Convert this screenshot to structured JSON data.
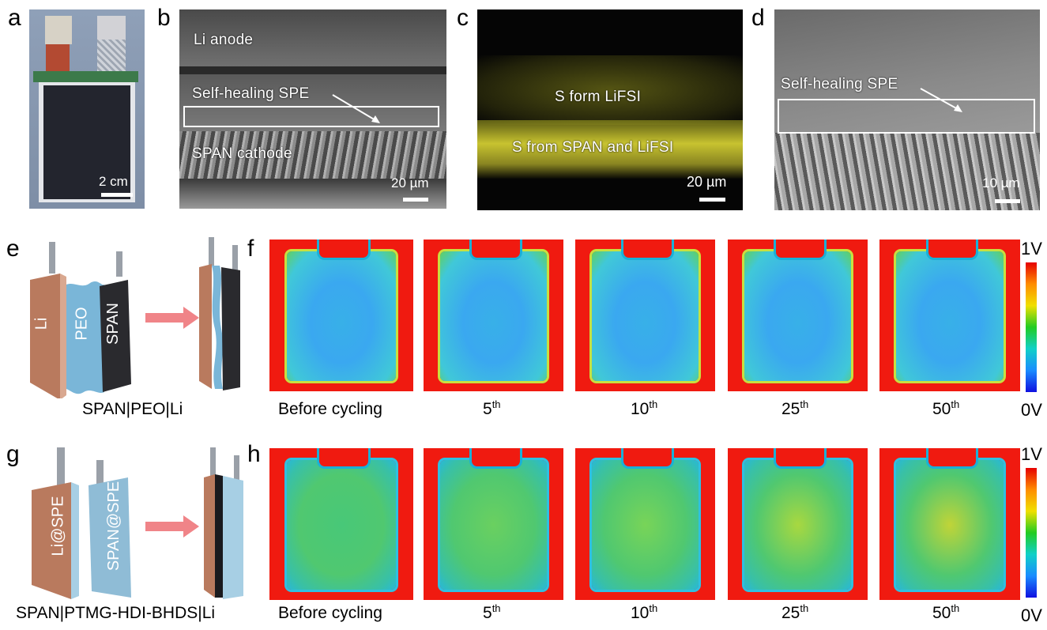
{
  "panels": {
    "a": {
      "label": "a",
      "scale": "2 cm"
    },
    "b": {
      "label": "b",
      "top_text": "Li anode",
      "middle_text": "Self-healing SPE",
      "bottom_text": "SPAN cathode",
      "scale": "20 µm"
    },
    "c": {
      "label": "c",
      "upper_text": "S form LiFSI",
      "lower_text": "S from SPAN and LiFSI",
      "scale": "20 µm"
    },
    "d": {
      "label": "d",
      "text": "Self-healing SPE",
      "scale": "10 µm"
    },
    "e": {
      "label": "e",
      "layers": [
        "Li",
        "PEO",
        "SPAN"
      ],
      "caption": "SPAN|PEO|Li"
    },
    "f": {
      "label": "f"
    },
    "g": {
      "label": "g",
      "layers": [
        "Li@SPE",
        "SPAN@SPE"
      ],
      "caption": "SPAN|PTMG-HDI-BHDS|Li"
    },
    "h": {
      "label": "h"
    }
  },
  "cycle_captions": {
    "before": "Before cycling",
    "c5": "5",
    "c10": "10",
    "c25": "25",
    "c50": "50",
    "suffix": "th"
  },
  "colorbar": {
    "max": "1V",
    "min": "0V",
    "colors": [
      "#e60000",
      "#ff8c00",
      "#f0e000",
      "#22cc22",
      "#10d0c8",
      "#1a8cff",
      "#1010e0"
    ]
  },
  "colors": {
    "thermal_red": "#f01a10",
    "sem_grey": "#6a6a6a",
    "edx_yellow": "#c8c020"
  }
}
